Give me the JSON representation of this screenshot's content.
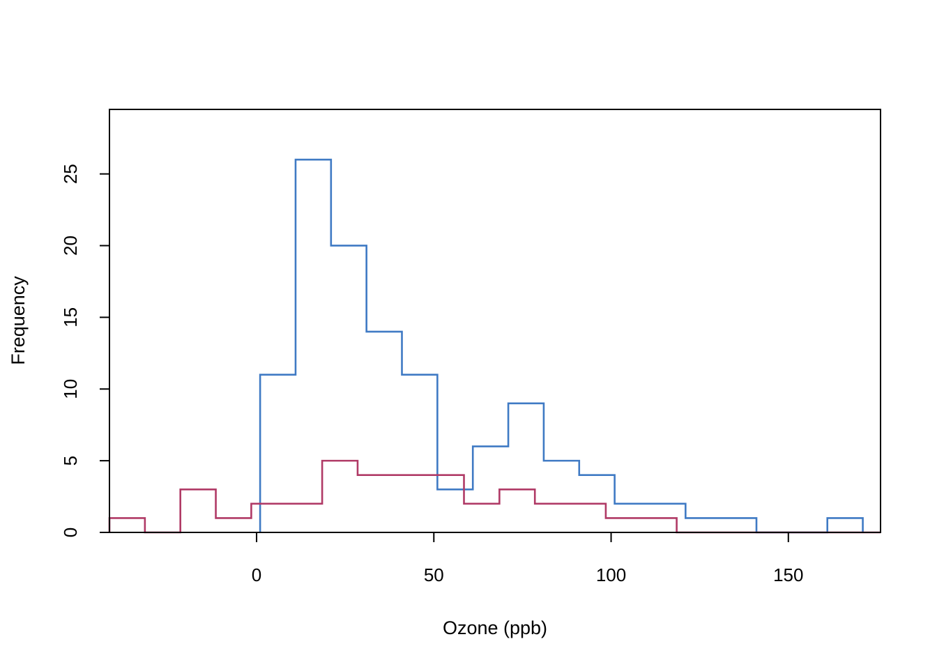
{
  "chart_data": {
    "type": "histogram",
    "title": "",
    "xlabel": "Ozone (ppb)",
    "ylabel": "Frequency",
    "xlim": [
      -41.5,
      176
    ],
    "ylim": [
      0,
      29.5
    ],
    "x_ticks": [
      "0",
      "50",
      "100",
      "150"
    ],
    "x_tick_values": [
      0,
      50,
      100,
      150
    ],
    "y_ticks": [
      "0",
      "5",
      "10",
      "15",
      "20",
      "25"
    ],
    "y_tick_values": [
      0,
      5,
      10,
      15,
      20,
      25
    ],
    "grid": false,
    "legend": "none",
    "series": [
      {
        "color": "#3f7ac4",
        "bin_edges": [
          1,
          11,
          21,
          31,
          41,
          51,
          61,
          71,
          81,
          91,
          101,
          111,
          121,
          131,
          141,
          151,
          161,
          171
        ],
        "counts": [
          11,
          26,
          20,
          14,
          11,
          3,
          6,
          9,
          5,
          4,
          2,
          2,
          1,
          1,
          0,
          0,
          1
        ]
      },
      {
        "color": "#b03a66",
        "bin_edges": [
          -41.5,
          -31.5,
          -21.5,
          -11.5,
          -1.5,
          8.5,
          18.5,
          28.5,
          38.5,
          48.5,
          58.5,
          68.5,
          78.5,
          88.5,
          98.5,
          108.5,
          118.5,
          128.5,
          138.5,
          148.5,
          158.5,
          168.5,
          176
        ],
        "counts": [
          1,
          0,
          3,
          1,
          2,
          2,
          5,
          4,
          4,
          4,
          2,
          3,
          2,
          2,
          1,
          1,
          0,
          0,
          0,
          0,
          0,
          0
        ]
      }
    ]
  }
}
